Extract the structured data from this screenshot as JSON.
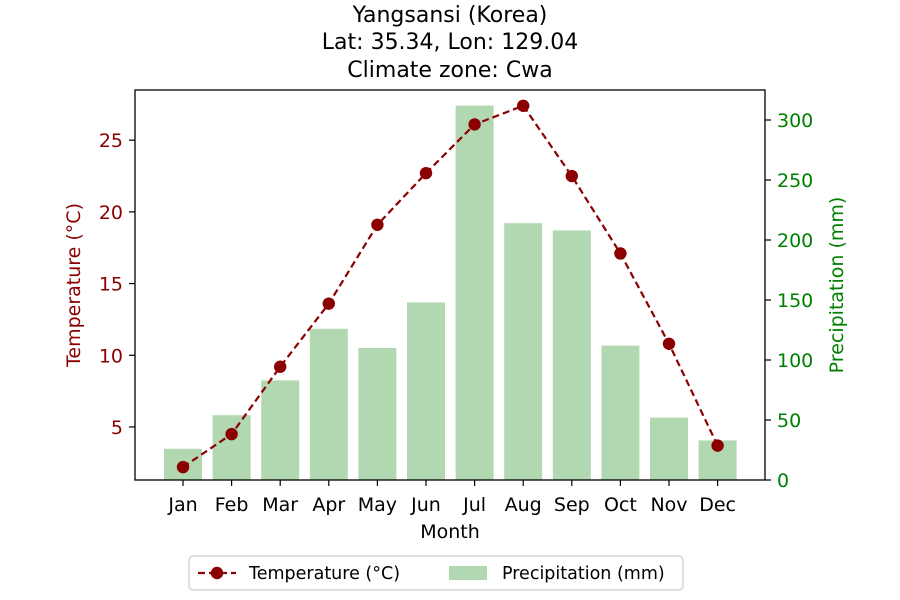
{
  "chart_data": {
    "type": "bar+line",
    "title_lines": [
      "Yangsansi (Korea)",
      "Lat: 35.34, Lon: 129.04",
      "Climate zone: Cwa"
    ],
    "xlabel": "Month",
    "ylabel_left": "Temperature (°C)",
    "ylabel_right": "Precipitation (mm)",
    "categories": [
      "Jan",
      "Feb",
      "Mar",
      "Apr",
      "May",
      "Jun",
      "Jul",
      "Aug",
      "Sep",
      "Oct",
      "Nov",
      "Dec"
    ],
    "series": [
      {
        "name": "Temperature (°C)",
        "kind": "line",
        "axis": "left",
        "color": "#8b0000",
        "values": [
          2.2,
          4.5,
          9.2,
          13.6,
          19.1,
          22.7,
          26.1,
          27.4,
          22.5,
          17.1,
          10.8,
          3.7
        ]
      },
      {
        "name": "Precipitation (mm)",
        "kind": "bar",
        "axis": "right",
        "color": "#b2d8b2",
        "values": [
          26,
          54,
          83,
          126,
          110,
          148,
          312,
          214,
          208,
          112,
          52,
          33
        ]
      }
    ],
    "y_left_range": [
      1.3,
      28.5
    ],
    "y_left_ticks": [
      5,
      10,
      15,
      20,
      25
    ],
    "y_right_range": [
      0,
      325
    ],
    "y_right_ticks": [
      0,
      50,
      100,
      150,
      200,
      250,
      300
    ],
    "left_axis_color": "#8b0000",
    "right_axis_color": "#008000",
    "grid": false,
    "legend_position": "bottom-center"
  }
}
